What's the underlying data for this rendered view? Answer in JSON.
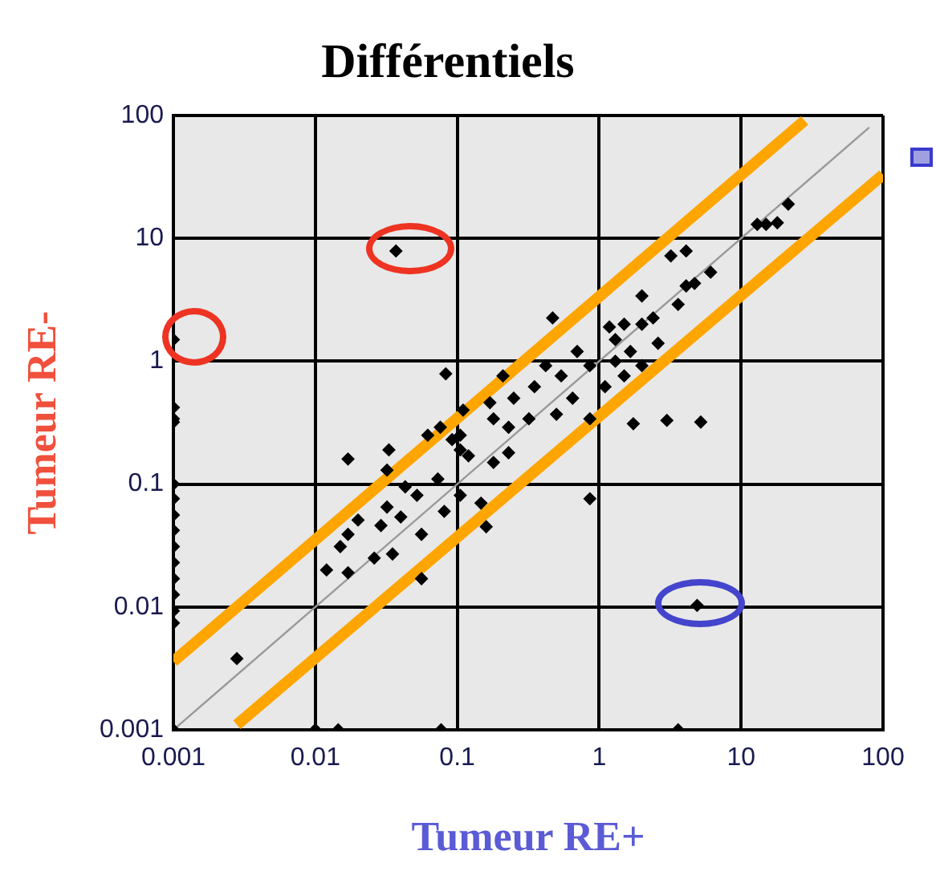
{
  "chart_data": {
    "type": "scatter",
    "title": "Différentiels",
    "xlabel": "Tumeur RE+",
    "ylabel": "Tumeur RE-",
    "log": "xy",
    "grid": true,
    "legend": false,
    "xlim": [
      0.001,
      100
    ],
    "ylim": [
      0.001,
      100
    ],
    "xticks": [
      0.001,
      0.01,
      0.1,
      1,
      10,
      100
    ],
    "yticks": [
      0.001,
      0.01,
      0.1,
      1,
      10,
      100
    ],
    "series": [
      {
        "color": "#000000",
        "marker": "diamond",
        "x": [
          0.001,
          0.001,
          0.001,
          0.001,
          0.001,
          0.001,
          0.001,
          0.001,
          0.001,
          0.001,
          0.001,
          0.001,
          0.001,
          0.001,
          0.001,
          0.01,
          0.0145,
          0.077,
          3.6,
          0.0028,
          0.037,
          4.9,
          1.74,
          3.0,
          5.2,
          0.86,
          13,
          18,
          21.5,
          15,
          3.2,
          4.1,
          6.1,
          4.7,
          4.1,
          3.6,
          2.0,
          2.4,
          2.0,
          1.5,
          1.18,
          1.3,
          1.66,
          2.6,
          0.47,
          1.5,
          2.0,
          1.3,
          0.86,
          0.7,
          1.1,
          0.54,
          0.42,
          0.35,
          0.65,
          0.25,
          0.32,
          0.5,
          0.21,
          0.86,
          0.18,
          0.017,
          0.033,
          0.032,
          0.043,
          0.052,
          0.032,
          0.04,
          0.029,
          0.02,
          0.017,
          0.015,
          0.012,
          0.017,
          0.026,
          0.035,
          0.056,
          0.056,
          0.081,
          0.073,
          0.105,
          0.12,
          0.147,
          0.16,
          0.092,
          0.105,
          0.18,
          0.23,
          0.062,
          0.11,
          0.17,
          0.23,
          0.076,
          0.083,
          0.105
        ],
        "values": [
          1.5,
          0.42,
          0.32,
          0.1,
          0.076,
          0.056,
          0.042,
          0.031,
          0.023,
          0.017,
          0.0126,
          0.0093,
          0.0074,
          0.001,
          0.34,
          0.001,
          0.001,
          0.001,
          0.001,
          0.0038,
          7.9,
          0.0103,
          0.31,
          0.33,
          0.32,
          0.076,
          13,
          13.4,
          19,
          13,
          7.2,
          7.9,
          5.3,
          4.3,
          4.1,
          2.9,
          3.4,
          2.25,
          2.0,
          2.0,
          1.9,
          1.5,
          1.2,
          1.4,
          2.25,
          0.76,
          0.92,
          1.0,
          0.92,
          1.2,
          0.62,
          0.76,
          0.92,
          0.62,
          0.5,
          0.5,
          0.34,
          0.37,
          0.76,
          0.34,
          0.34,
          0.16,
          0.19,
          0.13,
          0.095,
          0.081,
          0.065,
          0.054,
          0.046,
          0.051,
          0.039,
          0.031,
          0.02,
          0.019,
          0.025,
          0.027,
          0.039,
          0.017,
          0.06,
          0.11,
          0.081,
          0.17,
          0.07,
          0.045,
          0.23,
          0.19,
          0.15,
          0.18,
          0.25,
          0.4,
          0.46,
          0.29,
          0.29,
          0.79,
          0.25
        ]
      },
      {
        "type": "line",
        "marker": "none",
        "color": "#999999",
        "x": [
          0.001,
          80
        ],
        "values": [
          0.001,
          80
        ]
      },
      {
        "type": "line",
        "marker": "none",
        "color": "#ffa500",
        "x": [
          0.001,
          28
        ],
        "values": [
          0.0036,
          91
        ]
      },
      {
        "type": "line",
        "marker": "none",
        "color": "#ffa500",
        "x": [
          0.0028,
          100
        ],
        "values": [
          0.0011,
          33
        ]
      }
    ]
  }
}
